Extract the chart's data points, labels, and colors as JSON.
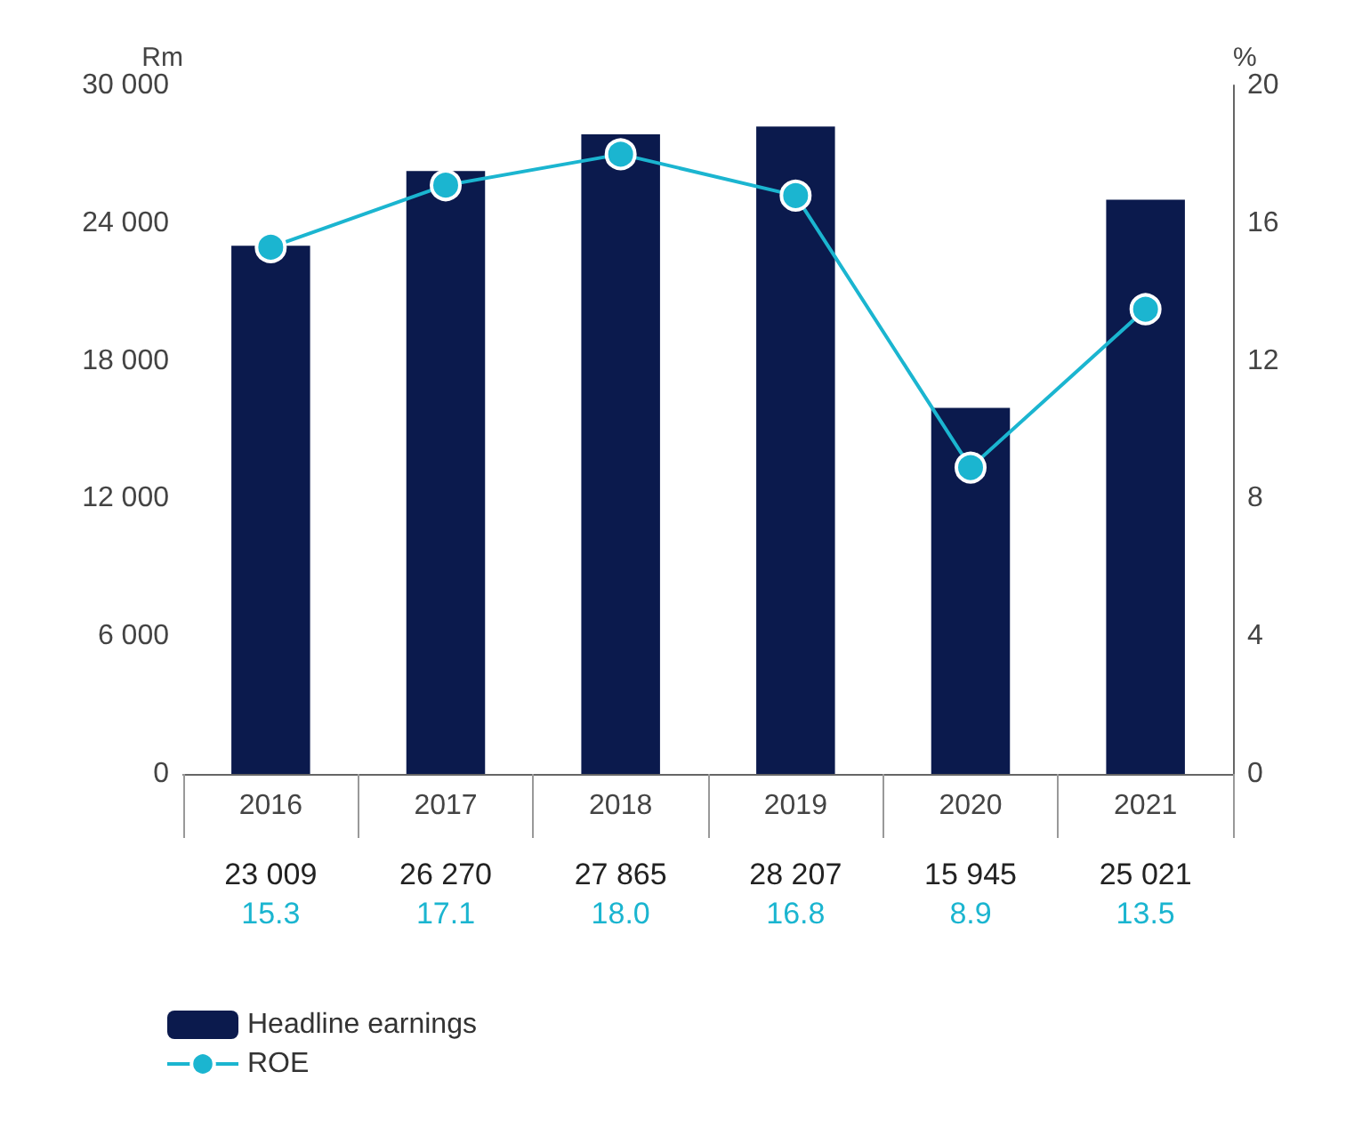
{
  "chart_data": {
    "type": "bar",
    "ylabel": "Rm",
    "y2label": "%",
    "categories": [
      "2016",
      "2017",
      "2018",
      "2019",
      "2020",
      "2021"
    ],
    "series": [
      {
        "name": "Headline earnings",
        "color": "#0b1a4d",
        "values": [
          23009,
          26270,
          27865,
          28207,
          15945,
          25021
        ],
        "value_labels": [
          "23 009",
          "26 270",
          "27 865",
          "28 207",
          "15 945",
          "25 021"
        ]
      },
      {
        "name": "ROE",
        "type": "line",
        "axis": "y2",
        "color": "#1bb5d0",
        "marker": "circle",
        "values": [
          15.3,
          17.1,
          18.0,
          16.8,
          8.9,
          13.5
        ],
        "value_labels": [
          "15.3",
          "17.1",
          "18.0",
          "16.8",
          "8.9",
          "13.5"
        ]
      }
    ],
    "ylim": [
      0,
      30000
    ],
    "yticks": [
      {
        "value": 0,
        "label": "0"
      },
      {
        "value": 6000,
        "label": "6 000"
      },
      {
        "value": 12000,
        "label": "12 000"
      },
      {
        "value": 18000,
        "label": "18 000"
      },
      {
        "value": 24000,
        "label": "24 000"
      },
      {
        "value": 30000,
        "label": "30 000"
      }
    ],
    "y2lim": [
      0,
      20
    ],
    "y2ticks": [
      0,
      4,
      8,
      12,
      16,
      20
    ],
    "grid": false,
    "legend": "bottom left"
  }
}
